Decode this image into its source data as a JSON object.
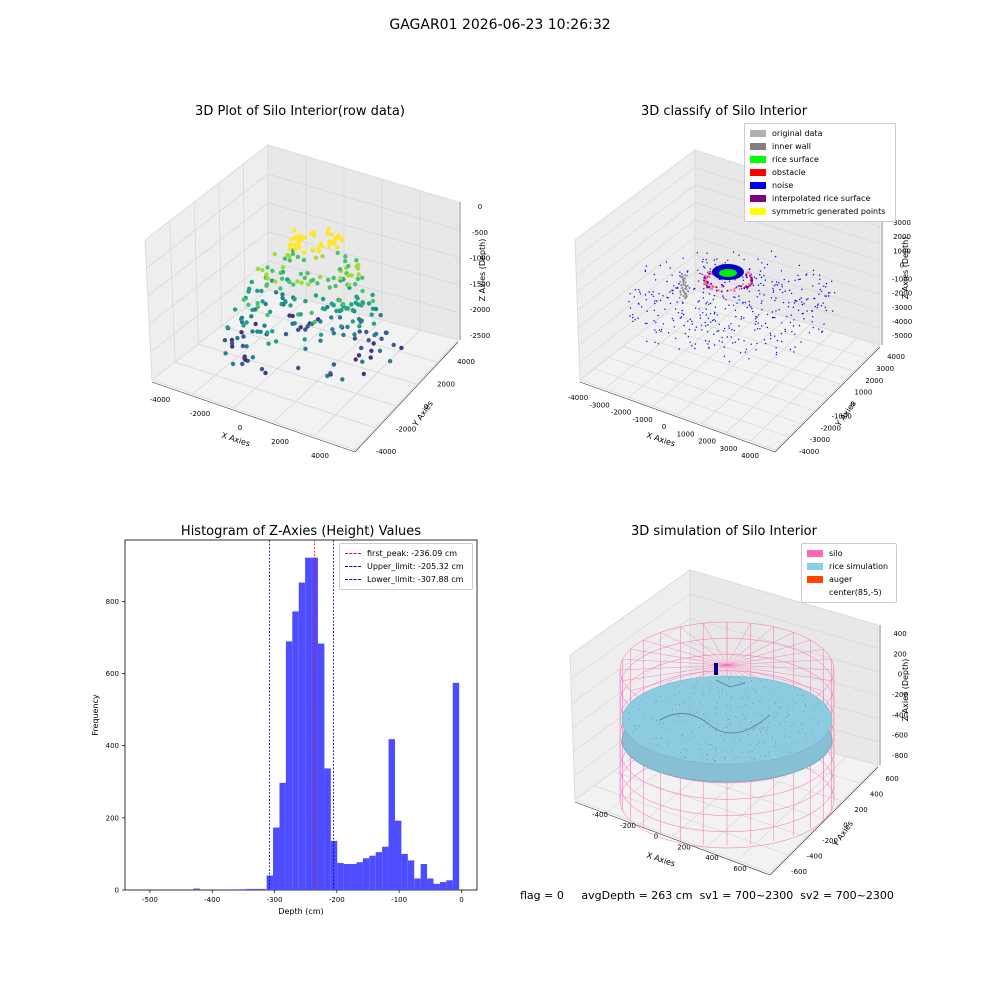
{
  "suptitle": "GAGAR01 2026-06-23 10:26:32",
  "panels": {
    "raw": {
      "title": "3D Plot of Silo Interior(row data)",
      "xlabel": "X Axies",
      "ylabel": "Y Axies",
      "zlabel": "Z Axies (Depth)",
      "xticks": [
        "-4000",
        "-2000",
        "0",
        "2000",
        "4000"
      ],
      "yticks": [
        "-4000",
        "-2000",
        "0",
        "2000",
        "4000"
      ],
      "zticks": [
        "0",
        "-500",
        "-1000",
        "-1500",
        "-2000",
        "-2500"
      ]
    },
    "classify": {
      "title": "3D classify of Silo Interior",
      "xlabel": "X Axies",
      "ylabel": "Y Axies",
      "zlabel": "Z Axies (Depth)",
      "xticks": [
        "-4000",
        "-3000",
        "-2000",
        "-1000",
        "0",
        "1000",
        "2000",
        "3000",
        "4000"
      ],
      "yticks": [
        "-4000",
        "-3000",
        "-2000",
        "-1000",
        "0",
        "1000",
        "2000",
        "3000",
        "4000"
      ],
      "zticks": [
        "3000",
        "2000",
        "1000",
        "0",
        "-1000",
        "-2000",
        "-3000",
        "-4000",
        "-5000"
      ],
      "legend": [
        {
          "label": "original data",
          "color": "#b0b0b0"
        },
        {
          "label": "inner wall",
          "color": "#808080"
        },
        {
          "label": "rice surface",
          "color": "#00ff00"
        },
        {
          "label": "obstacle",
          "color": "#ff0000"
        },
        {
          "label": "noise",
          "color": "#0000ee"
        },
        {
          "label": "interpolated rice surface",
          "color": "#800080"
        },
        {
          "label": "symmetric generated points",
          "color": "#ffff00"
        }
      ]
    },
    "simulation": {
      "title": "3D simulation of Silo Interior",
      "xlabel": "X Axies",
      "ylabel": "Y Axies",
      "zlabel": "Z Axies (Depth)",
      "xticks": [
        "-400",
        "-200",
        "0",
        "200",
        "400",
        "600"
      ],
      "yticks": [
        "-600",
        "-400",
        "-200",
        "0",
        "200",
        "400",
        "600"
      ],
      "zticks": [
        "400",
        "200",
        "0",
        "-200",
        "-400",
        "-600",
        "-800"
      ],
      "legend": [
        {
          "label": "silo",
          "color": "#ff69b4"
        },
        {
          "label": "rice simulation",
          "color": "#87ceeb"
        },
        {
          "label": "auger",
          "color": "#ff4500"
        },
        {
          "label": "center(85,-5)",
          "color": "#ffffff"
        }
      ]
    }
  },
  "chart_data": {
    "type": "bar",
    "title": "Histogram of Z-Axies (Height) Values",
    "xlabel": "Depth (cm)",
    "ylabel": "Frequency",
    "xlim": [
      -540,
      25
    ],
    "ylim": [
      0,
      970
    ],
    "xticks": [
      -500,
      -400,
      -300,
      -200,
      -100,
      0
    ],
    "yticks": [
      0,
      200,
      400,
      600,
      800
    ],
    "bar_color": "#4d4dff",
    "bin_width": 10.3,
    "bins": [
      {
        "x": -425,
        "y": 4
      },
      {
        "x": -365,
        "y": 2
      },
      {
        "x": -350,
        "y": 2
      },
      {
        "x": -340,
        "y": 3
      },
      {
        "x": -330,
        "y": 3
      },
      {
        "x": -320,
        "y": 3
      },
      {
        "x": -307.5,
        "y": 40
      },
      {
        "x": -297.2,
        "y": 173
      },
      {
        "x": -286.9,
        "y": 297
      },
      {
        "x": -276.6,
        "y": 689
      },
      {
        "x": -266.3,
        "y": 772
      },
      {
        "x": -256.0,
        "y": 852
      },
      {
        "x": -245.7,
        "y": 921
      },
      {
        "x": -235.4,
        "y": 921
      },
      {
        "x": -225.1,
        "y": 683
      },
      {
        "x": -214.8,
        "y": 337
      },
      {
        "x": -204.5,
        "y": 136
      },
      {
        "x": -194.2,
        "y": 75
      },
      {
        "x": -183.9,
        "y": 72
      },
      {
        "x": -173.6,
        "y": 72
      },
      {
        "x": -163.3,
        "y": 77
      },
      {
        "x": -153.0,
        "y": 88
      },
      {
        "x": -142.7,
        "y": 95
      },
      {
        "x": -132.4,
        "y": 105
      },
      {
        "x": -122.1,
        "y": 120
      },
      {
        "x": -111.8,
        "y": 418
      },
      {
        "x": -101.5,
        "y": 192
      },
      {
        "x": -91.2,
        "y": 100
      },
      {
        "x": -80.9,
        "y": 82
      },
      {
        "x": -70.6,
        "y": 32
      },
      {
        "x": -60.3,
        "y": 72
      },
      {
        "x": -50.0,
        "y": 32
      },
      {
        "x": -39.7,
        "y": 17
      },
      {
        "x": -29.4,
        "y": 22
      },
      {
        "x": -19.1,
        "y": 27
      },
      {
        "x": -8.8,
        "y": 574
      }
    ],
    "lines": [
      {
        "label": "first_peak: -236.09 cm",
        "x": -236.09,
        "color": "#ff0000"
      },
      {
        "label": "Upper_limit: -205.32 cm",
        "x": -205.32,
        "color": "#0000cc"
      },
      {
        "label": "Lower_limit: -307.88 cm",
        "x": -307.88,
        "color": "#0000cc"
      }
    ]
  },
  "footer": {
    "flag": "flag = 0",
    "avg": "avgDepth = 263 cm",
    "sv1": "sv1 = 700~2300",
    "sv2": "sv2 = 700~2300"
  }
}
